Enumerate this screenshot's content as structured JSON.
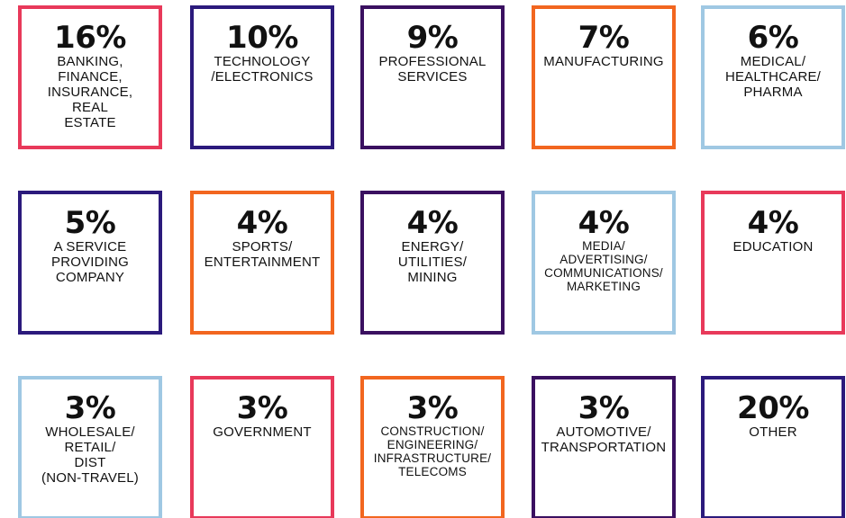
{
  "tiles": [
    {
      "percent": "16%",
      "lines": [
        "BANKING,",
        "FINANCE,",
        "INSURANCE,",
        "REAL",
        "ESTATE"
      ],
      "color": "#e8395a"
    },
    {
      "percent": "10%",
      "lines": [
        "TECHNOLOGY",
        "/ELECTRONICS"
      ],
      "color": "#2b1a7c"
    },
    {
      "percent": "9%",
      "lines": [
        "PROFESSIONAL",
        "SERVICES"
      ],
      "color": "#3a1060"
    },
    {
      "percent": "7%",
      "lines": [
        "MANUFACTURING"
      ],
      "color": "#f2661f"
    },
    {
      "percent": "6%",
      "lines": [
        "MEDICAL/",
        "HEALTHCARE/",
        "PHARMA"
      ],
      "color": "#9fc8e3"
    },
    {
      "percent": "5%",
      "lines": [
        "A SERVICE",
        "PROVIDING",
        "COMPANY"
      ],
      "color": "#2b1a7c"
    },
    {
      "percent": "4%",
      "lines": [
        "SPORTS/",
        "ENTERTAINMENT"
      ],
      "color": "#f2661f"
    },
    {
      "percent": "4%",
      "lines": [
        "ENERGY/",
        "UTILITIES/",
        "MINING"
      ],
      "color": "#3a1060"
    },
    {
      "percent": "4%",
      "lines": [
        "MEDIA/",
        "ADVERTISING/",
        "COMMUNICATIONS/",
        "MARKETING"
      ],
      "color": "#9fc8e3"
    },
    {
      "percent": "4%",
      "lines": [
        "EDUCATION"
      ],
      "color": "#e8395a"
    },
    {
      "percent": "3%",
      "lines": [
        "WHOLESALE/",
        "RETAIL/",
        "DIST",
        "(NON-TRAVEL)"
      ],
      "color": "#9fc8e3"
    },
    {
      "percent": "3%",
      "lines": [
        "GOVERNMENT"
      ],
      "color": "#e8395a"
    },
    {
      "percent": "3%",
      "lines": [
        "CONSTRUCTION/",
        "ENGINEERING/",
        "INFRASTRUCTURE/",
        "TELECOMS"
      ],
      "color": "#f2661f"
    },
    {
      "percent": "3%",
      "lines": [
        "AUTOMOTIVE/",
        "TRANSPORTATION"
      ],
      "color": "#3a1060"
    },
    {
      "percent": "20%",
      "lines": [
        "OTHER"
      ],
      "color": "#2b1a7c"
    }
  ]
}
